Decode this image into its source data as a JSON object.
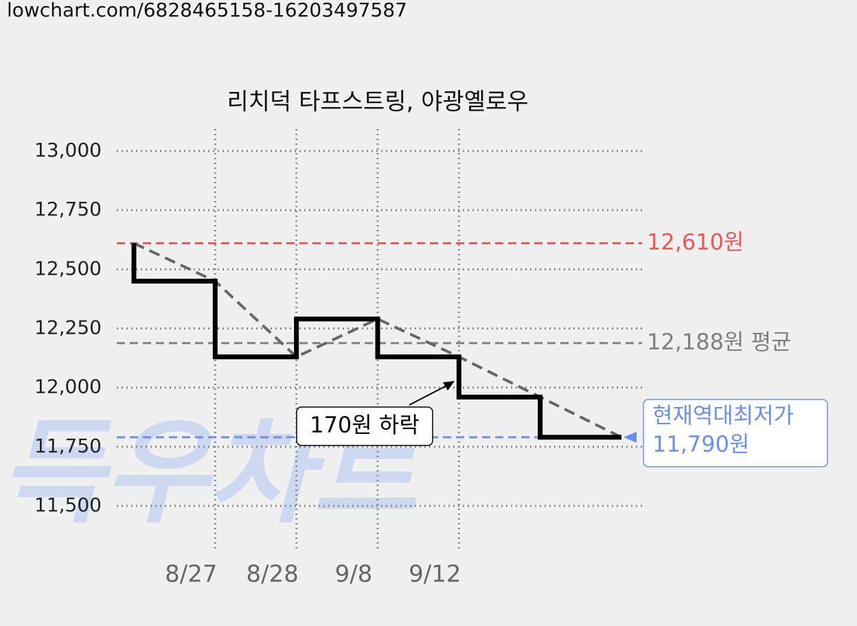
{
  "url": "lowchart.com/6828465158-16203497587",
  "chart_data": {
    "type": "step",
    "title": "리치덕 타프스트링, 야광옐로우",
    "watermark": "득우차트",
    "categories": [
      null,
      "8/27",
      "8/28",
      "9/8",
      "9/12",
      null,
      null
    ],
    "series": [
      {
        "color": "#000000",
        "values": [
          12610,
          12450,
          12130,
          12290,
          12130,
          11960,
          11790
        ]
      }
    ],
    "trend_color": "#666666",
    "ylim": [
      11500,
      13000
    ],
    "yticks": [
      {
        "value": 11500,
        "label": "11,500"
      },
      {
        "value": 11750,
        "label": "11,750"
      },
      {
        "value": 12000,
        "label": "12,000"
      },
      {
        "value": 12250,
        "label": "12,250"
      },
      {
        "value": 12500,
        "label": "12,500"
      },
      {
        "value": 12750,
        "label": "12,750"
      },
      {
        "value": 13000,
        "label": "13,000"
      }
    ],
    "grid": true,
    "reference_lines": [
      {
        "value": 12610,
        "label": "12,610원",
        "color": "#f05555"
      },
      {
        "value": 12188,
        "label": "12,188원 평균",
        "color": "#808080"
      },
      {
        "value": 11790,
        "label_lines": [
          "현재역대최저가",
          "11,790원"
        ],
        "color": "#6a8ff0"
      }
    ],
    "annotation": "170원 하락"
  }
}
